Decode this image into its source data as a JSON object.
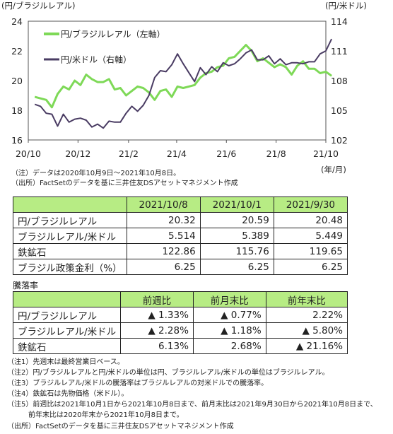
{
  "chart_data": {
    "type": "line",
    "y_left_title": "(円/ブラジルレアル)",
    "y_right_title": "(円/米ドル)",
    "x_unit": "(年/月)",
    "x_ticks": [
      "20/10",
      "20/12",
      "21/2",
      "21/4",
      "21/6",
      "21/8",
      "21/10"
    ],
    "y_left_ticks": [
      "16",
      "18",
      "20",
      "22",
      "24"
    ],
    "y_right_ticks": [
      "102",
      "105",
      "108",
      "111",
      "114"
    ],
    "ylim_left": [
      16,
      24
    ],
    "ylim_right": [
      102,
      114
    ],
    "legend_position": "top-left",
    "grid": false,
    "series": [
      {
        "name": "円/ブラジルレアル（左軸）",
        "axis": "left",
        "color": "#7ed957",
        "points": [
          [
            "2020-10-09",
            18.9
          ],
          [
            "2020-10-16",
            18.8
          ],
          [
            "2020-10-23",
            18.7
          ],
          [
            "2020-10-30",
            18.2
          ],
          [
            "2020-11-06",
            19.1
          ],
          [
            "2020-11-13",
            19.6
          ],
          [
            "2020-11-20",
            19.4
          ],
          [
            "2020-11-27",
            20.0
          ],
          [
            "2020-12-04",
            19.7
          ],
          [
            "2020-12-11",
            20.4
          ],
          [
            "2020-12-18",
            20.1
          ],
          [
            "2020-12-25",
            19.9
          ],
          [
            "2021-01-01",
            19.9
          ],
          [
            "2021-01-08",
            20.1
          ],
          [
            "2021-01-15",
            19.4
          ],
          [
            "2021-01-22",
            19.5
          ],
          [
            "2021-01-29",
            19.0
          ],
          [
            "2021-02-05",
            19.3
          ],
          [
            "2021-02-12",
            19.6
          ],
          [
            "2021-02-19",
            19.5
          ],
          [
            "2021-02-26",
            19.2
          ],
          [
            "2021-03-05",
            18.7
          ],
          [
            "2021-03-12",
            19.3
          ],
          [
            "2021-03-19",
            19.4
          ],
          [
            "2021-03-26",
            18.9
          ],
          [
            "2021-04-02",
            19.6
          ],
          [
            "2021-04-09",
            19.5
          ],
          [
            "2021-04-16",
            19.6
          ],
          [
            "2021-04-23",
            19.7
          ],
          [
            "2021-04-30",
            20.2
          ],
          [
            "2021-05-07",
            20.5
          ],
          [
            "2021-05-14",
            20.6
          ],
          [
            "2021-05-21",
            20.9
          ],
          [
            "2021-05-28",
            21.0
          ],
          [
            "2021-06-04",
            21.5
          ],
          [
            "2021-06-11",
            21.6
          ],
          [
            "2021-06-18",
            22.0
          ],
          [
            "2021-06-25",
            22.4
          ],
          [
            "2021-07-02",
            22.0
          ],
          [
            "2021-07-09",
            21.3
          ],
          [
            "2021-07-16",
            21.5
          ],
          [
            "2021-07-23",
            21.2
          ],
          [
            "2021-07-30",
            20.9
          ],
          [
            "2021-08-06",
            21.1
          ],
          [
            "2021-08-13",
            20.9
          ],
          [
            "2021-08-20",
            20.4
          ],
          [
            "2021-08-27",
            21.0
          ],
          [
            "2021-09-03",
            21.3
          ],
          [
            "2021-09-10",
            20.8
          ],
          [
            "2021-09-17",
            20.8
          ],
          [
            "2021-09-24",
            20.5
          ],
          [
            "2021-10-01",
            20.6
          ],
          [
            "2021-10-08",
            20.32
          ]
        ]
      },
      {
        "name": "円/米ドル（右軸）",
        "axis": "right",
        "color": "#4a3c63",
        "points": [
          [
            "2020-10-09",
            105.6
          ],
          [
            "2020-10-16",
            105.4
          ],
          [
            "2020-10-23",
            104.7
          ],
          [
            "2020-10-30",
            104.6
          ],
          [
            "2020-11-06",
            103.4
          ],
          [
            "2020-11-13",
            104.6
          ],
          [
            "2020-11-20",
            103.8
          ],
          [
            "2020-11-27",
            104.1
          ],
          [
            "2020-12-04",
            104.2
          ],
          [
            "2020-12-11",
            104.0
          ],
          [
            "2020-12-18",
            103.3
          ],
          [
            "2020-12-25",
            103.6
          ],
          [
            "2021-01-01",
            103.2
          ],
          [
            "2021-01-08",
            103.9
          ],
          [
            "2021-01-15",
            103.8
          ],
          [
            "2021-01-22",
            103.8
          ],
          [
            "2021-01-29",
            104.7
          ],
          [
            "2021-02-05",
            105.4
          ],
          [
            "2021-02-12",
            104.9
          ],
          [
            "2021-02-19",
            105.5
          ],
          [
            "2021-02-26",
            106.5
          ],
          [
            "2021-03-05",
            108.3
          ],
          [
            "2021-03-12",
            109.0
          ],
          [
            "2021-03-19",
            108.9
          ],
          [
            "2021-03-26",
            109.6
          ],
          [
            "2021-04-02",
            110.7
          ],
          [
            "2021-04-09",
            109.7
          ],
          [
            "2021-04-16",
            108.8
          ],
          [
            "2021-04-23",
            107.9
          ],
          [
            "2021-04-30",
            109.3
          ],
          [
            "2021-05-07",
            108.6
          ],
          [
            "2021-05-14",
            109.4
          ],
          [
            "2021-05-21",
            108.9
          ],
          [
            "2021-05-28",
            109.8
          ],
          [
            "2021-06-04",
            109.5
          ],
          [
            "2021-06-11",
            109.7
          ],
          [
            "2021-06-18",
            110.2
          ],
          [
            "2021-06-25",
            110.8
          ],
          [
            "2021-07-02",
            111.1
          ],
          [
            "2021-07-09",
            110.1
          ],
          [
            "2021-07-16",
            110.1
          ],
          [
            "2021-07-23",
            110.5
          ],
          [
            "2021-07-30",
            109.7
          ],
          [
            "2021-08-06",
            110.2
          ],
          [
            "2021-08-13",
            109.6
          ],
          [
            "2021-08-20",
            109.8
          ],
          [
            "2021-08-27",
            109.8
          ],
          [
            "2021-09-03",
            109.7
          ],
          [
            "2021-09-10",
            109.9
          ],
          [
            "2021-09-17",
            109.9
          ],
          [
            "2021-09-24",
            110.7
          ],
          [
            "2021-10-01",
            111.0
          ],
          [
            "2021-10-08",
            112.2
          ]
        ]
      }
    ]
  },
  "chart_notes": [
    "（注）データは2020年10月9日～2021年10月8日。",
    "（出所）FactSetのデータを基に三井住友DSアセットマネジメント作成"
  ],
  "table1": {
    "headers": [
      "2021/10/8",
      "2021/10/1",
      "2021/9/30"
    ],
    "rows": [
      {
        "label": "円/ブラジルレアル",
        "values": [
          "20.32",
          "20.59",
          "20.48"
        ]
      },
      {
        "label": "ブラジルレアル/米ドル",
        "values": [
          "5.514",
          "5.389",
          "5.449"
        ]
      },
      {
        "label": "鉄鉱石",
        "values": [
          "122.86",
          "115.76",
          "119.65"
        ]
      },
      {
        "label": "ブラジル政策金利（%）",
        "values": [
          "6.25",
          "6.25",
          "6.25"
        ]
      }
    ]
  },
  "table2": {
    "title": "騰落率",
    "headers": [
      "前週比",
      "前月末比",
      "前年末比"
    ],
    "rows": [
      {
        "label": "円/ブラジルレアル",
        "values": [
          "▲ 1.33%",
          "▲ 0.77%",
          "2.22%"
        ]
      },
      {
        "label": "ブラジルレアル/米ドル",
        "values": [
          "▲ 2.28%",
          "▲ 1.18%",
          "▲ 5.80%"
        ]
      },
      {
        "label": "鉄鉱石",
        "values": [
          "6.13%",
          "2.68%",
          "▲ 21.16%"
        ]
      }
    ]
  },
  "footnotes": [
    "（注1）先週末は最終営業日ベース。",
    "（注2）円/ブラジルレアルと円/米ドルの単位は円、ブラジルレアル/米ドルの単位はブラジルレアル。",
    "（注3）ブラジルレアル/米ドルの騰落率はブラジルレアルの対米ドルでの騰落率。",
    "（注4）鉄鉱石は先物価格（米ドル）。",
    "（注5）前週比は2021年10月1日から2021年10月8日まで、前月末比は2021年9月30日から2021年10月8日まで、",
    "　　　前年末比は2020年末から2021年10月8日まで。",
    "（出所）FactSetのデータを基に三井住友DSアセットマネジメント作成"
  ]
}
